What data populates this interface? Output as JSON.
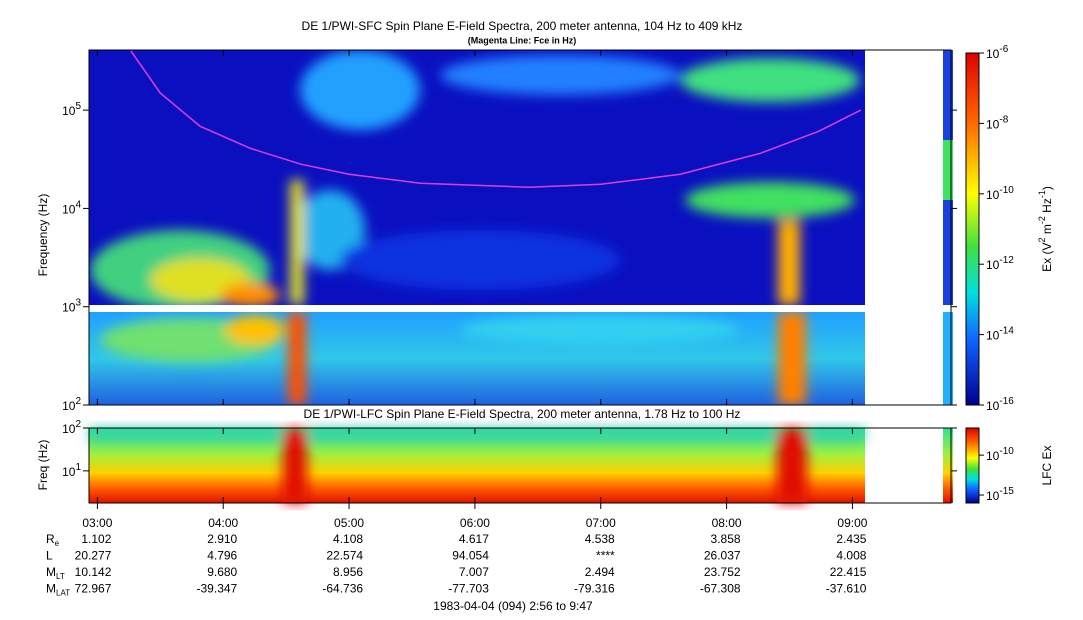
{
  "chart_data": [
    {
      "type": "spectrogram",
      "title": "DE 1/PWI-SFC  Spin Plane E-Field Spectra, 200 meter antenna, 104 Hz to 409 kHz",
      "subtitle": "(Magenta Line: Fce in Hz)",
      "ylabel": "Frequency (Hz)",
      "log_y": true,
      "xlim": [
        176,
        587
      ],
      "ylim": [
        100,
        409000
      ],
      "yticks": [
        {
          "value": 100,
          "label": "10",
          "power": "2"
        },
        {
          "value": 1000,
          "label": "10",
          "power": "3"
        },
        {
          "value": 10000,
          "label": "10",
          "power": "4"
        },
        {
          "value": 100000,
          "label": "10",
          "power": "5"
        }
      ],
      "series": [
        {
          "color": "#e03ce0",
          "x": [
            196,
            210,
            229,
            253,
            277,
            300,
            334,
            386,
            420,
            458,
            496,
            524,
            544
          ],
          "values": [
            400000,
            149000,
            68500,
            40800,
            28200,
            22300,
            18000,
            16400,
            17600,
            22300,
            36300,
            61000,
            100000
          ]
        }
      ],
      "colorbar": {
        "label": [
          "Ex (V",
          "2",
          " m",
          "-2",
          " Hz",
          "-1",
          ")"
        ],
        "lim": [
          1e-16,
          1e-06
        ],
        "ticks": [
          {
            "value": 1e-06,
            "label": "10",
            "power": "-6"
          },
          {
            "value": 1e-08,
            "label": "10",
            "power": "-8"
          },
          {
            "value": 1e-10,
            "label": "10",
            "power": "-10"
          },
          {
            "value": 1e-12,
            "label": "10",
            "power": "-12"
          },
          {
            "value": 1e-14,
            "label": "10",
            "power": "-14"
          },
          {
            "value": 1e-16,
            "label": "10",
            "power": "-16"
          }
        ]
      }
    },
    {
      "type": "spectrogram",
      "title": "DE 1/PWI-LFC  Spin Plane E-Field Spectra, 200 meter antenna, 1.78 Hz to 100 Hz",
      "ylabel": "Freq (Hz)",
      "log_y": true,
      "xlim": [
        176,
        587
      ],
      "ylim": [
        1.78,
        100
      ],
      "yticks": [
        {
          "value": 10,
          "label": "10",
          "power": "1"
        },
        {
          "value": 100,
          "label": "10",
          "power": "2"
        }
      ],
      "xticks": [
        {
          "value": 180,
          "label": "03:00"
        },
        {
          "value": 240,
          "label": "04:00"
        },
        {
          "value": 300,
          "label": "05:00"
        },
        {
          "value": 360,
          "label": "06:00"
        },
        {
          "value": 420,
          "label": "07:00"
        },
        {
          "value": 480,
          "label": "08:00"
        },
        {
          "value": 540,
          "label": "09:00"
        }
      ],
      "colorbar": {
        "label": [
          "LFC Ex"
        ],
        "lim": [
          1e-16,
          2.5e-07
        ],
        "ticks": [
          {
            "value": 1e-10,
            "label": "10",
            "power": "-10"
          },
          {
            "value": 1e-15,
            "label": "10",
            "power": "-15"
          }
        ]
      }
    }
  ],
  "ephemeris": [
    {
      "label": "R",
      "sub": "e",
      "values": [
        "1.102",
        "2.910",
        "4.108",
        "4.617",
        "4.538",
        "3.858",
        "2.435"
      ]
    },
    {
      "label": "L",
      "values": [
        "20.277",
        "4.796",
        "22.574",
        "94.054",
        "****",
        "26.037",
        "4.008"
      ]
    },
    {
      "label": "M",
      "sub": "LT",
      "values": [
        "10.142",
        "9.680",
        "8.956",
        "7.007",
        "2.494",
        "23.752",
        "22.415"
      ]
    },
    {
      "label": "M",
      "sub": "LAT",
      "values": [
        "72.967",
        "-39.347",
        "-64.736",
        "-77.703",
        "-79.316",
        "-67.308",
        "-37.610"
      ]
    }
  ],
  "footer": "1983-04-04 (094) 2:56 to 9:47"
}
